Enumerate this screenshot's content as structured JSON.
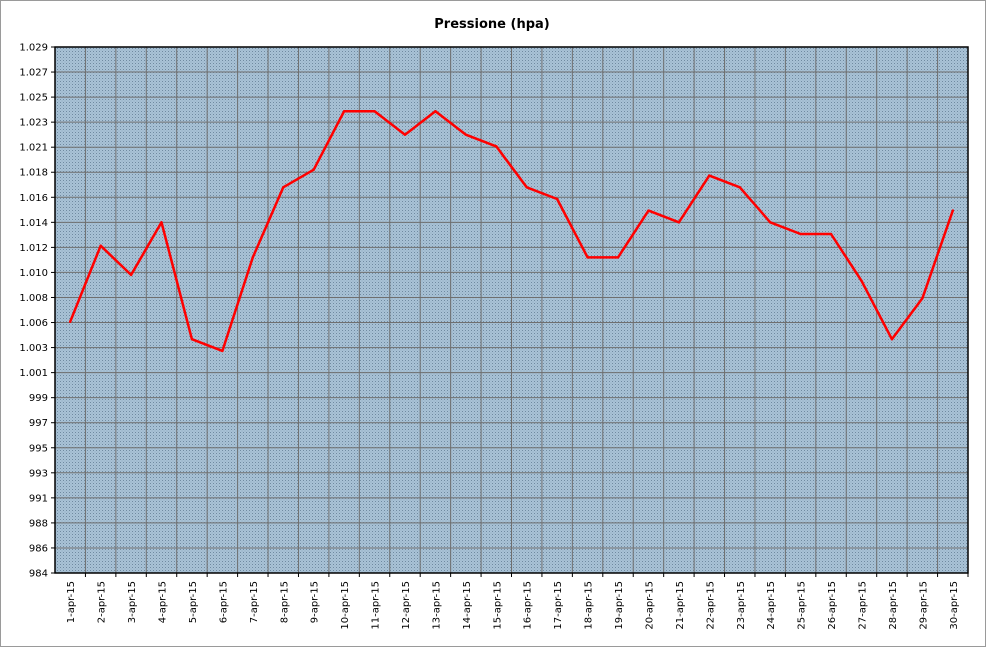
{
  "chart_data": {
    "type": "line",
    "title": "Pressione (hpa)",
    "xlabel": "",
    "ylabel": "",
    "ylim": [
      984,
      1029
    ],
    "yticks": [
      "984",
      "986",
      "988",
      "991",
      "993",
      "995",
      "997",
      "999",
      "1.001",
      "1.003",
      "1.006",
      "1.008",
      "1.010",
      "1.012",
      "1.014",
      "1.016",
      "1.018",
      "1.021",
      "1.023",
      "1.025",
      "1.027",
      "1.029"
    ],
    "categories": [
      "1-apr-15",
      "2-apr-15",
      "3-apr-15",
      "4-apr-15",
      "5-apr-15",
      "6-apr-15",
      "7-apr-15",
      "8-apr-15",
      "9-apr-15",
      "10-apr-15",
      "11-apr-15",
      "12-apr-15",
      "13-apr-15",
      "14-apr-15",
      "15-apr-15",
      "16-apr-15",
      "17-apr-15",
      "18-apr-15",
      "19-apr-15",
      "20-apr-15",
      "21-apr-15",
      "22-apr-15",
      "23-apr-15",
      "24-apr-15",
      "25-apr-15",
      "26-apr-15",
      "27-apr-15",
      "28-apr-15",
      "29-apr-15",
      "30-apr-15"
    ],
    "series": [
      {
        "values": [
          1005.5,
          1012.0,
          1009.5,
          1014.0,
          1004.0,
          1003.0,
          1011.0,
          1017.0,
          1018.5,
          1023.5,
          1023.5,
          1021.5,
          1023.5,
          1021.5,
          1020.5,
          1017.0,
          1016.0,
          1011.0,
          1011.0,
          1015.0,
          1014.0,
          1018.0,
          1017.0,
          1014.0,
          1013.0,
          1013.0,
          1009.0,
          1004.0,
          1007.5,
          1015.0
        ],
        "color": "#ff0000"
      }
    ],
    "grid": true,
    "legend": "none",
    "plot_background": "#9fb8cc",
    "grid_color": "#6f6f6f"
  }
}
